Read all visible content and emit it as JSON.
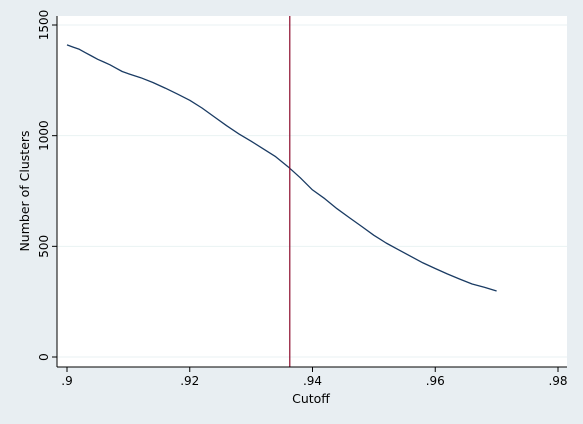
{
  "chart_data": {
    "type": "line",
    "title": "",
    "xlabel": "Cutoff",
    "ylabel": "Number of Clusters",
    "xlim": [
      0.9,
      0.98
    ],
    "ylim": [
      0,
      1500
    ],
    "x_ticks": [
      {
        "value": 0.9,
        "label": ".9"
      },
      {
        "value": 0.92,
        "label": ".92"
      },
      {
        "value": 0.94,
        "label": ".94"
      },
      {
        "value": 0.96,
        "label": ".96"
      },
      {
        "value": 0.98,
        "label": ".98"
      }
    ],
    "y_ticks": [
      {
        "value": 0,
        "label": "0"
      },
      {
        "value": 500,
        "label": "500"
      },
      {
        "value": 1000,
        "label": "1000"
      },
      {
        "value": 1500,
        "label": "1500"
      }
    ],
    "grid": true,
    "reference_line": {
      "x": 0.9363,
      "color": "#8b0a2a"
    },
    "series": [
      {
        "color": "#1a3b63",
        "x": [
          0.9,
          0.901,
          0.902,
          0.903,
          0.904,
          0.905,
          0.906,
          0.907,
          0.908,
          0.909,
          0.91,
          0.912,
          0.914,
          0.916,
          0.918,
          0.92,
          0.922,
          0.924,
          0.926,
          0.928,
          0.93,
          0.932,
          0.934,
          0.936,
          0.938,
          0.94,
          0.942,
          0.944,
          0.946,
          0.948,
          0.95,
          0.952,
          0.954,
          0.956,
          0.958,
          0.96,
          0.962,
          0.964,
          0.966,
          0.968,
          0.97
        ],
        "values": [
          1410,
          1400,
          1390,
          1375,
          1360,
          1345,
          1333,
          1320,
          1305,
          1290,
          1280,
          1262,
          1240,
          1215,
          1188,
          1160,
          1125,
          1085,
          1045,
          1008,
          975,
          940,
          905,
          860,
          810,
          755,
          715,
          670,
          630,
          590,
          550,
          515,
          485,
          455,
          425,
          400,
          375,
          352,
          330,
          315,
          298
        ]
      }
    ]
  }
}
